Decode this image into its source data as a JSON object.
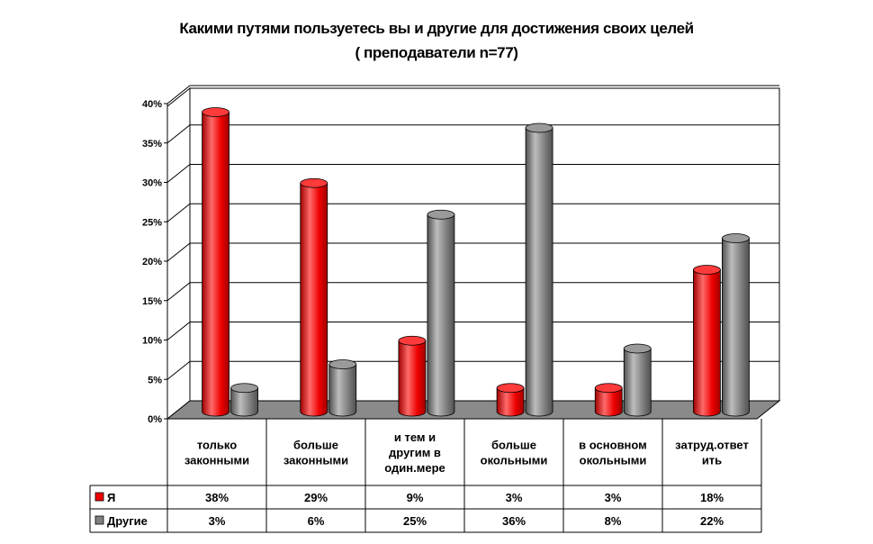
{
  "title_line1": "Какими путями пользуетесь вы и другие для достижения своих целей",
  "title_line2": "( преподаватели n=77)",
  "colors": {
    "ya": "#ee0000",
    "drugie": "#808080",
    "floor": "#8a8a8a"
  },
  "chart_data": {
    "type": "bar",
    "title": "Какими путями пользуетесь вы и другие для достижения своих целей ( преподаватели n=77)",
    "categories": [
      [
        "только",
        "законными"
      ],
      [
        "больше",
        "законными"
      ],
      [
        "и тем и",
        "другим в",
        "один.мере"
      ],
      [
        "больше",
        "окольными"
      ],
      [
        "в основном",
        "окольными"
      ],
      [
        "затруд.ответ",
        "ить"
      ]
    ],
    "series": [
      {
        "name": "Я",
        "values": [
          38,
          29,
          9,
          3,
          3,
          18
        ],
        "labels": [
          "38%",
          "29%",
          "9%",
          "3%",
          "3%",
          "18%"
        ]
      },
      {
        "name": "Другие",
        "values": [
          3,
          6,
          25,
          36,
          8,
          22
        ],
        "labels": [
          "3%",
          "6%",
          "25%",
          "36%",
          "8%",
          "22%"
        ]
      }
    ],
    "y_ticks": [
      "0%",
      "5%",
      "10%",
      "15%",
      "20%",
      "25%",
      "30%",
      "35%",
      "40%"
    ],
    "ylim": [
      0,
      40
    ],
    "grid": true,
    "legend": "data-table"
  }
}
